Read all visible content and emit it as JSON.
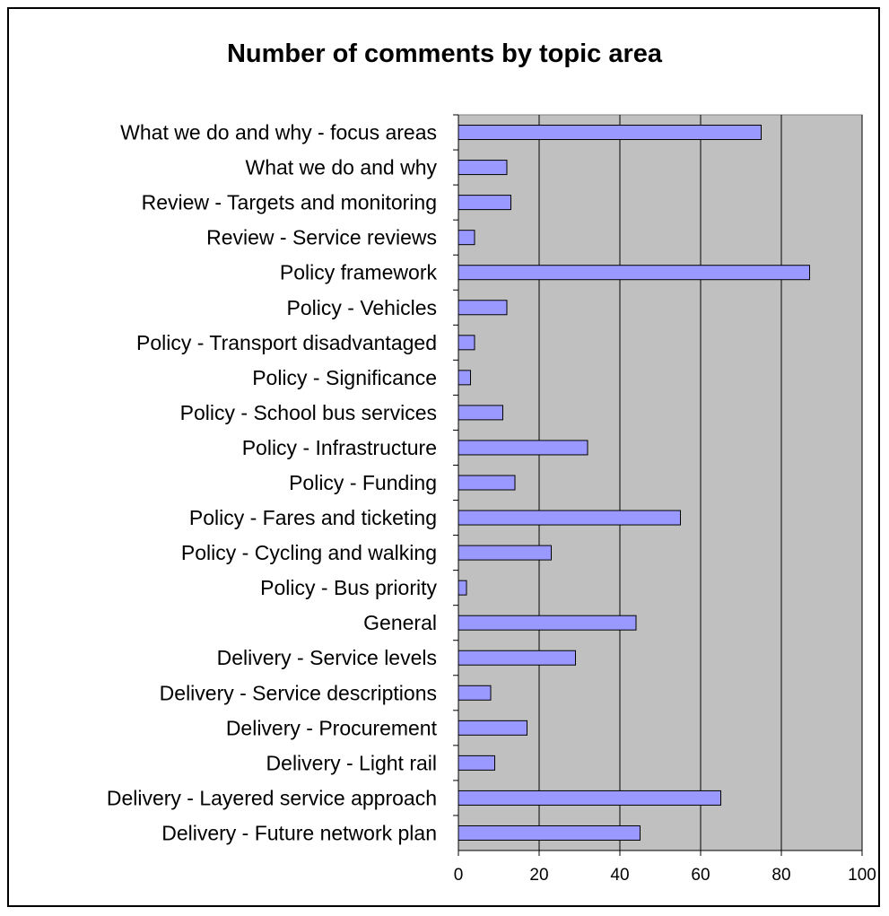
{
  "chart_data": {
    "type": "bar",
    "orientation": "horizontal",
    "title": "Number of comments by topic area",
    "xlabel": "",
    "ylabel": "",
    "xlim": [
      0,
      100
    ],
    "x_ticks": [
      "0",
      "20",
      "40",
      "60",
      "80",
      "100"
    ],
    "grid": true,
    "plot_background": "#c0c0c0",
    "bar_color": "#9999ff",
    "categories": [
      "What we do and why - focus areas",
      "What we do and why",
      "Review - Targets and monitoring",
      "Review - Service reviews",
      "Policy framework",
      "Policy - Vehicles",
      "Policy - Transport disadvantaged",
      "Policy - Significance",
      "Policy - School bus services",
      "Policy - Infrastructure",
      "Policy - Funding",
      "Policy - Fares and ticketing",
      "Policy - Cycling and walking",
      "Policy - Bus priority",
      "General",
      "Delivery - Service levels",
      "Delivery - Service descriptions",
      "Delivery - Procurement",
      "Delivery - Light rail",
      "Delivery - Layered service approach",
      "Delivery - Future network plan"
    ],
    "values": [
      75,
      12,
      13,
      4,
      87,
      12,
      4,
      3,
      11,
      32,
      14,
      55,
      23,
      2,
      44,
      29,
      8,
      17,
      9,
      65,
      45
    ]
  }
}
